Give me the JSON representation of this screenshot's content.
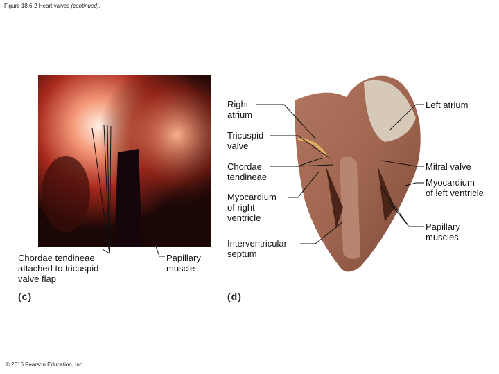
{
  "header": {
    "title": "Figure 18.6-2 Heart valves",
    "title_note": "(continued)."
  },
  "panel_c": {
    "tag": "(c)",
    "labels": [
      "Chordae tendineae attached to tricuspid valve flap",
      "Papillary muscle"
    ]
  },
  "panel_d": {
    "tag": "(d)",
    "left_labels": [
      "Right atrium",
      "Tricuspid valve",
      "Chordae tendineae",
      "Myocardium of right ventricle",
      "Interventricular septum"
    ],
    "right_labels": [
      "Left atrium",
      "Mitral valve",
      "Myocardium of left ventricle",
      "Papillary muscles"
    ]
  },
  "footer": {
    "copyright": "© 2016 Pearson Education, Inc."
  }
}
